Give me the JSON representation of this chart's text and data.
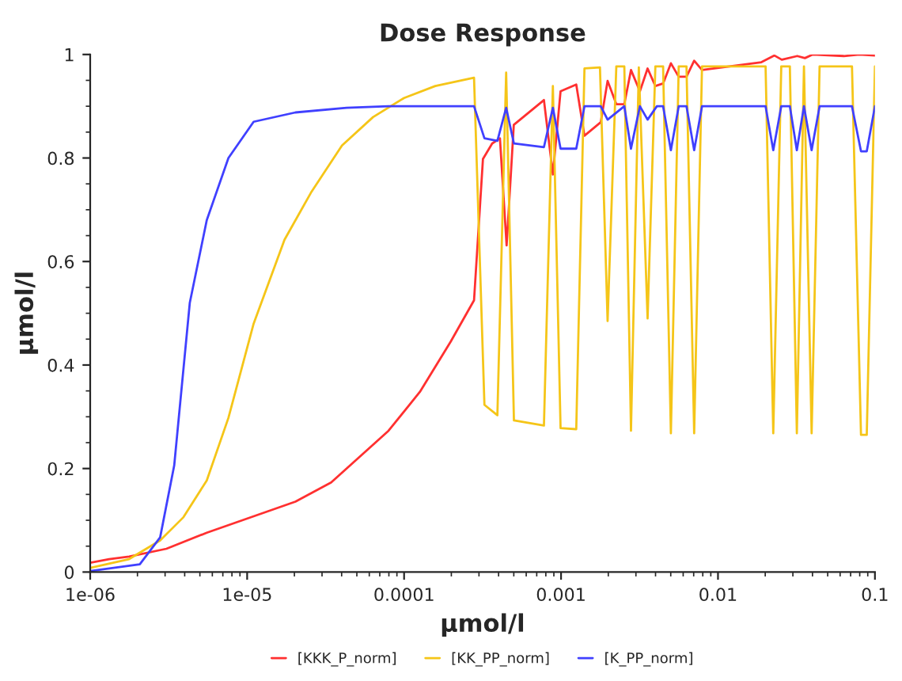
{
  "chart_data": {
    "type": "line",
    "title": "Dose Response",
    "xlabel": "µmol/l",
    "ylabel": "µmol/l",
    "log": "x",
    "xlim": [
      1e-06,
      0.1
    ],
    "xticks": [
      {
        "value": 1e-06,
        "label": "1e-06"
      },
      {
        "value": 1e-05,
        "label": "1e-05"
      },
      {
        "value": 0.0001,
        "label": "0.0001"
      },
      {
        "value": 0.001,
        "label": "0.001"
      },
      {
        "value": 0.01,
        "label": "0.01"
      },
      {
        "value": 0.1,
        "label": "0.1"
      }
    ],
    "ylim": [
      0,
      1
    ],
    "yticks": [
      0,
      0.2,
      0.4,
      0.6,
      0.8,
      1
    ],
    "grid": false,
    "legend": "bottom",
    "marker": "none",
    "line_style": "solid",
    "series": [
      {
        "name": "[KKK_P_norm]",
        "color": "#ff3030",
        "x": [
          1e-06,
          1.32e-06,
          1.77e-06,
          3.06e-06,
          5.53e-06,
          2.03e-05,
          3.43e-05,
          7.96e-05,
          0.000126,
          0.000198,
          0.000279,
          0.000318,
          0.000364,
          0.000408,
          0.00045,
          0.0005,
          0.000778,
          0.000887,
          0.000993,
          0.00125,
          0.00141,
          0.00179,
          0.00198,
          0.00225,
          0.00253,
          0.00279,
          0.00318,
          0.00356,
          0.00399,
          0.00447,
          0.00501,
          0.00562,
          0.0063,
          0.00705,
          0.00791,
          0.0189,
          0.0229,
          0.0255,
          0.032,
          0.0358,
          0.0402,
          0.0634,
          0.0796,
          0.1
        ],
        "values": [
          0.018,
          0.025,
          0.03,
          0.045,
          0.076,
          0.136,
          0.173,
          0.273,
          0.348,
          0.445,
          0.525,
          0.798,
          0.828,
          0.838,
          0.631,
          0.864,
          0.912,
          0.768,
          0.929,
          0.942,
          0.843,
          0.869,
          0.949,
          0.904,
          0.904,
          0.97,
          0.929,
          0.973,
          0.939,
          0.944,
          0.983,
          0.957,
          0.957,
          0.988,
          0.97,
          0.985,
          0.998,
          0.99,
          0.997,
          0.993,
          1.0,
          0.997,
          1.0,
          0.998
        ]
      },
      {
        "name": "[KK_PP_norm]",
        "color": "#f5c518",
        "x": [
          1e-06,
          1.77e-06,
          2.79e-06,
          3.93e-06,
          5.53e-06,
          7.6e-06,
          1.1e-05,
          1.73e-05,
          2.55e-05,
          4.02e-05,
          6.34e-05,
          0.0001,
          0.000158,
          0.000279,
          0.000325,
          0.000393,
          0.000447,
          0.000501,
          0.000778,
          0.000887,
          0.000993,
          0.00125,
          0.00141,
          0.00177,
          0.00198,
          0.00225,
          0.00253,
          0.00279,
          0.00313,
          0.00356,
          0.00399,
          0.00447,
          0.00501,
          0.00562,
          0.0063,
          0.00705,
          0.00791,
          0.0201,
          0.0225,
          0.0253,
          0.0287,
          0.0318,
          0.0353,
          0.0395,
          0.0444,
          0.0714,
          0.0815,
          0.0887,
          0.1
        ],
        "values": [
          0.008,
          0.025,
          0.061,
          0.106,
          0.177,
          0.298,
          0.48,
          0.642,
          0.733,
          0.824,
          0.879,
          0.916,
          0.939,
          0.955,
          0.323,
          0.303,
          0.965,
          0.293,
          0.283,
          0.939,
          0.278,
          0.276,
          0.973,
          0.975,
          0.485,
          0.977,
          0.977,
          0.273,
          0.975,
          0.49,
          0.977,
          0.977,
          0.268,
          0.977,
          0.977,
          0.268,
          0.977,
          0.977,
          0.268,
          0.977,
          0.977,
          0.268,
          0.977,
          0.268,
          0.977,
          0.977,
          0.265,
          0.265,
          0.977
        ]
      },
      {
        "name": "[K_PP_norm]",
        "color": "#4040ff",
        "x": [
          1e-06,
          2.07e-06,
          2.79e-06,
          3.43e-06,
          4.31e-06,
          5.53e-06,
          7.6e-06,
          1.1e-05,
          2.03e-05,
          4.3e-05,
          7.96e-05,
          0.000279,
          0.000325,
          0.000393,
          0.000447,
          0.000501,
          0.000778,
          0.000887,
          0.000993,
          0.00125,
          0.00141,
          0.00179,
          0.00198,
          0.00253,
          0.00279,
          0.00318,
          0.00356,
          0.00408,
          0.00447,
          0.00501,
          0.00562,
          0.0063,
          0.00705,
          0.00791,
          0.0201,
          0.0225,
          0.0253,
          0.0287,
          0.0318,
          0.0353,
          0.0395,
          0.0444,
          0.0714,
          0.0815,
          0.0887,
          0.1
        ],
        "values": [
          0.002,
          0.015,
          0.067,
          0.206,
          0.52,
          0.68,
          0.8,
          0.87,
          0.888,
          0.897,
          0.9,
          0.9,
          0.838,
          0.833,
          0.897,
          0.828,
          0.821,
          0.897,
          0.818,
          0.818,
          0.9,
          0.9,
          0.874,
          0.9,
          0.818,
          0.9,
          0.874,
          0.9,
          0.9,
          0.815,
          0.9,
          0.9,
          0.815,
          0.9,
          0.9,
          0.815,
          0.9,
          0.9,
          0.815,
          0.9,
          0.815,
          0.9,
          0.9,
          0.813,
          0.813,
          0.9
        ]
      }
    ]
  }
}
